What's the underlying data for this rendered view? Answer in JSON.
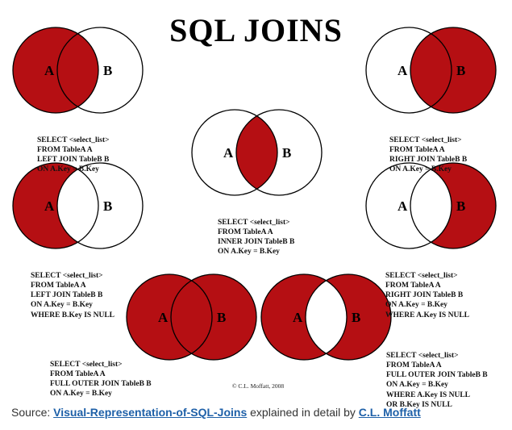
{
  "title": "SQL JOINS",
  "colors": {
    "fill": "#b50f13",
    "stroke": "#000000",
    "background": "#ffffff"
  },
  "diagrams": [
    {
      "id": "left-join",
      "label_a": "A",
      "label_b": "B",
      "code": [
        "SELECT <select_list>",
        "FROM TableA A",
        "LEFT JOIN TableB B",
        "ON A.Key = B.Key"
      ]
    },
    {
      "id": "right-join",
      "label_a": "A",
      "label_b": "B",
      "code": [
        "SELECT <select_list>",
        "FROM TableA A",
        "RIGHT JOIN TableB B",
        "ON A.Key = B.Key"
      ]
    },
    {
      "id": "inner-join",
      "label_a": "A",
      "label_b": "B",
      "code": [
        "SELECT <select_list>",
        "FROM TableA A",
        "INNER JOIN TableB B",
        "ON A.Key = B.Key"
      ]
    },
    {
      "id": "left-excluding-join",
      "label_a": "A",
      "label_b": "B",
      "code": [
        "SELECT <select_list>",
        "FROM TableA A",
        "LEFT JOIN TableB B",
        "ON A.Key = B.Key",
        "WHERE B.Key IS NULL"
      ]
    },
    {
      "id": "right-excluding-join",
      "label_a": "A",
      "label_b": "B",
      "code": [
        "SELECT <select_list>",
        "FROM TableA A",
        "RIGHT JOIN TableB B",
        "ON A.Key = B.Key",
        "WHERE A.Key IS NULL"
      ]
    },
    {
      "id": "full-outer-join",
      "label_a": "A",
      "label_b": "B",
      "code": [
        "SELECT <select_list>",
        "FROM TableA A",
        "FULL OUTER JOIN TableB B",
        "ON A.Key = B.Key"
      ]
    },
    {
      "id": "full-outer-excluding-join",
      "label_a": "A",
      "label_b": "B",
      "code": [
        "SELECT <select_list>",
        "FROM TableA A",
        "FULL OUTER JOIN TableB B",
        "ON A.Key = B.Key",
        "WHERE A.Key IS NULL",
        "OR B.Key IS NULL"
      ]
    }
  ],
  "credit": "© C.L. Moffatt, 2008",
  "source": {
    "prefix": "Source: ",
    "link1": "Visual-Representation-of-SQL-Joins",
    "middle": " explained in detail by ",
    "link2": "C.L. Moffatt"
  }
}
